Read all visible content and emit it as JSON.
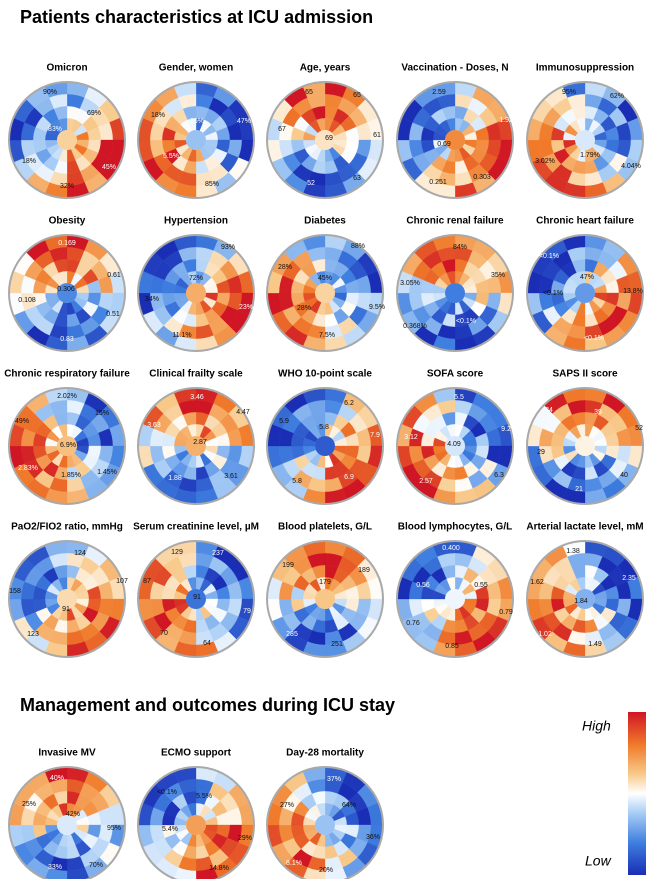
{
  "sections": [
    {
      "title": "Patients characteristics at ICU admission",
      "panels": [
        {
          "title": "Omicron",
          "labels": [
            "90%",
            "69%",
            "83%",
            "18%",
            "45%",
            "32%"
          ]
        },
        {
          "title": "Gender, women",
          "labels": [
            "18%",
            "16%",
            "47%",
            "5.5%",
            "85%"
          ]
        },
        {
          "title": "Age, years",
          "labels": [
            "65",
            "65",
            "67",
            "69",
            "61",
            "63",
            "52"
          ]
        },
        {
          "title": "Vaccination - Doses, N",
          "labels": [
            "2.59",
            "1.92",
            "0.69",
            "0.251",
            "0.303"
          ]
        },
        {
          "title": "Immunosuppression",
          "labels": [
            "95%",
            "62%",
            "1.79%",
            "3.02%",
            "4.04%"
          ]
        },
        {
          "title": "Obesity",
          "labels": [
            "0.169",
            "0.61",
            "0.306",
            "0.108",
            "0.51",
            "0.83"
          ]
        },
        {
          "title": "Hypertension",
          "labels": [
            "93%",
            "72%",
            "34%",
            "23%",
            "11.1%"
          ]
        },
        {
          "title": "Diabetes",
          "labels": [
            "88%",
            "28%",
            "45%",
            "28%",
            "9.5%",
            "7.5%"
          ]
        },
        {
          "title": "Chronic renal failure",
          "labels": [
            "84%",
            "35%",
            "3.05%",
            "0.368%",
            "<0.1%"
          ]
        },
        {
          "title": "Chronic heart failure",
          "labels": [
            "<0.1%",
            "47%",
            "13.8%",
            "<0.1%",
            "<0.1%"
          ]
        },
        {
          "title": "Chronic respiratory failure",
          "labels": [
            "2.02%",
            "15%",
            "49%",
            "6.9%",
            "2.83%",
            "1.45%",
            "1.85%"
          ]
        },
        {
          "title": "Clinical frailty scale",
          "labels": [
            "3.46",
            "4.47",
            "3.63",
            "2.87",
            "1.88",
            "3.61"
          ]
        },
        {
          "title": "WHO 10-point scale",
          "labels": [
            "6.2",
            "5.9",
            "5.8",
            "7.9",
            "5.8",
            "6.9"
          ]
        },
        {
          "title": "SOFA score",
          "labels": [
            "5.5",
            "9.2",
            "3.12",
            "4.09",
            "6.3",
            "2.57"
          ]
        },
        {
          "title": "SAPS II score",
          "labels": [
            "34",
            "39",
            "52",
            "29",
            "40",
            "21"
          ]
        },
        {
          "title": "PaO2/FIO2 ratio, mmHg",
          "labels": [
            "124",
            "107",
            "158",
            "91",
            "123"
          ]
        },
        {
          "title": "Serum creatinine level, µM",
          "labels": [
            "129",
            "237",
            "87",
            "91",
            "79",
            "70",
            "64"
          ]
        },
        {
          "title": "Blood platelets, G/L",
          "labels": [
            "199",
            "179",
            "189",
            "285",
            "251"
          ]
        },
        {
          "title": "Blood lymphocytes, G/L",
          "labels": [
            "0.400",
            "0.56",
            "0.55",
            "0.76",
            "0.79",
            "0.85"
          ]
        },
        {
          "title": "Arterial lactate level, mM",
          "labels": [
            "1.38",
            "2.35",
            "1.62",
            "1.84",
            "1.02",
            "1.49"
          ]
        }
      ]
    },
    {
      "title": "Management and outcomes during ICU stay",
      "panels": [
        {
          "title": "Invasive MV",
          "labels": [
            "40%",
            "25%",
            "42%",
            "95%",
            "33%",
            "70%"
          ]
        },
        {
          "title": "ECMO support",
          "labels": [
            "<0.1%",
            "5.5%",
            "5.4%",
            "29%",
            "14.8%"
          ]
        },
        {
          "title": "Day-28 mortality",
          "labels": [
            "37%",
            "64%",
            "27%",
            "36%",
            "8.1%",
            "20%"
          ]
        }
      ]
    }
  ],
  "legend": {
    "high": "High",
    "low": "Low"
  }
}
